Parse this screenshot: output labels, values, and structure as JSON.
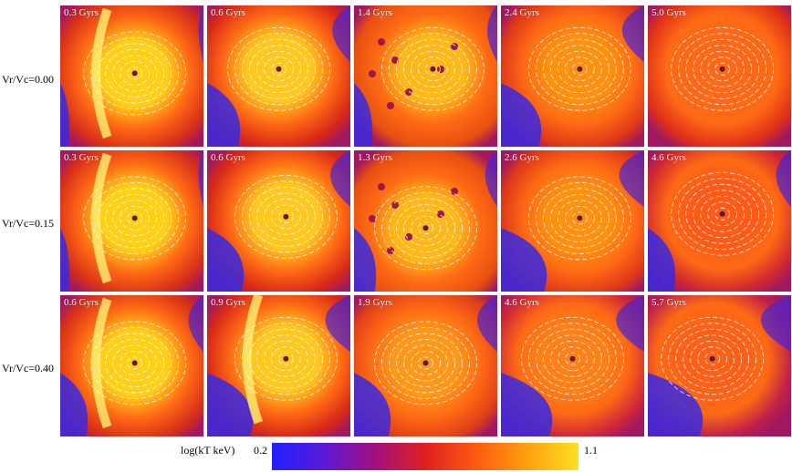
{
  "row_labels": [
    "Vr/Vc=0.00",
    "Vr/Vc=0.15",
    "Vr/Vc=0.40"
  ],
  "panels": [
    [
      "0.3 Gyrs",
      "0.6 Gyrs",
      "1.4 Gyrs",
      "2.4 Gyrs",
      "5.0 Gyrs"
    ],
    [
      "0.3 Gyrs",
      "0.6 Gyrs",
      "1.3 Gyrs",
      "2.6 Gyrs",
      "4.6 Gyrs"
    ],
    [
      "0.6 Gyrs",
      "0.9 Gyrs",
      "1.9 Gyrs",
      "4.6 Gyrs",
      "5.7 Gyrs"
    ]
  ],
  "colorbar": {
    "label": "log(kT keV)",
    "min": "0.2",
    "max": "1.1",
    "colors": [
      "#2020ff",
      "#5a1ad8",
      "#a01080",
      "#e02020",
      "#ff5a10",
      "#ffa010",
      "#ffe020"
    ]
  }
}
